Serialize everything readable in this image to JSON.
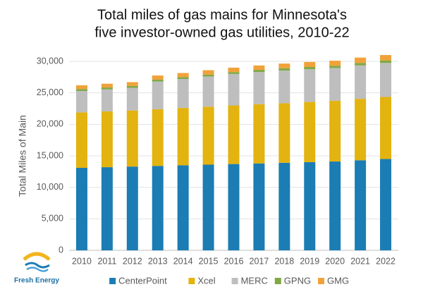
{
  "chart_data": {
    "type": "stacked-bar",
    "title": [
      "Total miles of gas mains for Minnesota's",
      "five investor-owned gas utilities, 2010-22"
    ],
    "y_label": "Total Miles of Main",
    "categories": [
      "2010",
      "2011",
      "2012",
      "2013",
      "2014",
      "2015",
      "2016",
      "2017",
      "2018",
      "2019",
      "2020",
      "2021",
      "2022"
    ],
    "series": [
      {
        "name": "CenterPoint",
        "color": "#1b7db3",
        "values": [
          13100,
          13200,
          13300,
          13400,
          13500,
          13600,
          13700,
          13800,
          13900,
          14000,
          14100,
          14300,
          14500
        ]
      },
      {
        "name": "Xcel",
        "color": "#e3b30f",
        "values": [
          8800,
          8850,
          8900,
          9000,
          9100,
          9200,
          9300,
          9400,
          9450,
          9550,
          9650,
          9750,
          9850
        ]
      },
      {
        "name": "MERC",
        "color": "#bebebe",
        "values": [
          3400,
          3500,
          3600,
          4400,
          4600,
          4800,
          5000,
          5100,
          5200,
          5200,
          5200,
          5300,
          5400
        ]
      },
      {
        "name": "GPNG",
        "color": "#80a844",
        "values": [
          300,
          300,
          300,
          300,
          300,
          300,
          300,
          350,
          350,
          350,
          350,
          400,
          400
        ]
      },
      {
        "name": "GMG",
        "color": "#f0a23a",
        "values": [
          600,
          600,
          600,
          650,
          650,
          700,
          700,
          700,
          750,
          800,
          800,
          850,
          850
        ]
      }
    ],
    "ylim": [
      0,
      30000
    ],
    "yticks": [
      0,
      {
        "value": 5000,
        "label": "5,000"
      },
      {
        "value": 10000,
        "label": "10,000"
      },
      {
        "value": 15000,
        "label": "15,000"
      },
      {
        "value": 20000,
        "label": "20,000"
      },
      {
        "value": 25000,
        "label": "25,000"
      },
      {
        "value": 30000,
        "label": "30,000"
      }
    ],
    "grid": true,
    "legend": "bottom"
  },
  "logo_text": "Fresh Energy"
}
